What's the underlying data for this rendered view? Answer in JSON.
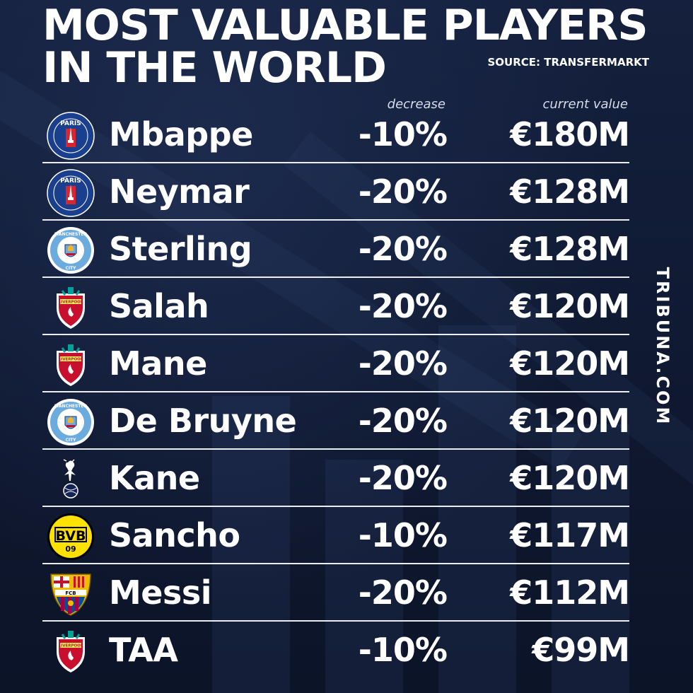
{
  "header": {
    "title_line1": "MOST VALUABLE PLAYERS",
    "title_line2": "IN THE WORLD",
    "source": "SOURCE: TRANSFERMARKT"
  },
  "columns": {
    "decrease": "decrease",
    "current_value": "current value"
  },
  "players": [
    {
      "name": "Mbappe",
      "decrease": "-10%",
      "value": "€180M",
      "crest": "psg-crest-icon"
    },
    {
      "name": "Neymar",
      "decrease": "-20%",
      "value": "€128M",
      "crest": "psg-crest-icon"
    },
    {
      "name": "Sterling",
      "decrease": "-20%",
      "value": "€128M",
      "crest": "man-city-crest-icon"
    },
    {
      "name": "Salah",
      "decrease": "-20%",
      "value": "€120M",
      "crest": "liverpool-crest-icon"
    },
    {
      "name": "Mane",
      "decrease": "-20%",
      "value": "€120M",
      "crest": "liverpool-crest-icon"
    },
    {
      "name": "De Bruyne",
      "decrease": "-20%",
      "value": "€120M",
      "crest": "man-city-crest-icon"
    },
    {
      "name": "Kane",
      "decrease": "-20%",
      "value": "€120M",
      "crest": "tottenham-crest-icon"
    },
    {
      "name": "Sancho",
      "decrease": "-10%",
      "value": "€117M",
      "crest": "dortmund-crest-icon"
    },
    {
      "name": "Messi",
      "decrease": "-20%",
      "value": "€112M",
      "crest": "barcelona-crest-icon"
    },
    {
      "name": "TAA",
      "decrease": "-10%",
      "value": "€99M",
      "crest": "liverpool-crest-icon"
    }
  ],
  "crest_text": {
    "psg_top": "PARIS",
    "city_top": "MANCHESTER",
    "city_bottom": "CITY",
    "liverpool": "LIVERPOOL",
    "bvb_letters": "BVB",
    "bvb_number": "09",
    "fcb": "FCB"
  },
  "watermark": "TRIBUNA.COM",
  "colors": {
    "background": "#101a33",
    "text": "#ffffff",
    "psg_blue": "#1b3f8f",
    "psg_red": "#d8262f",
    "city_blue": "#6cabdd",
    "liverpool_red": "#c8102e",
    "bvb_yellow": "#fde100",
    "barca_blue": "#004d98",
    "barca_red": "#a50044"
  }
}
